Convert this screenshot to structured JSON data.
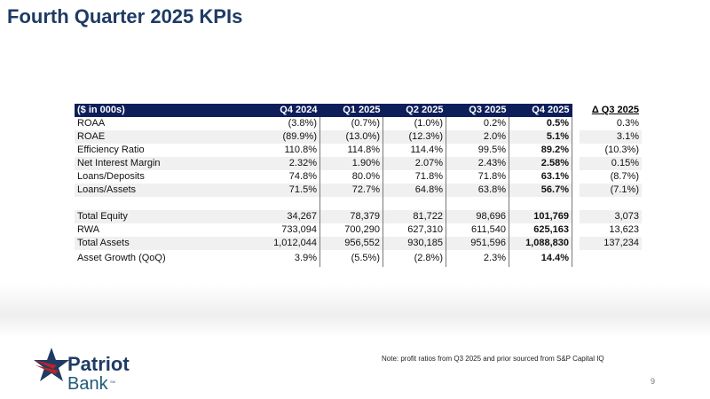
{
  "title": "Fourth Quarter 2025 KPIs",
  "table": {
    "headers": [
      "($ in 000s)",
      "Q4 2024",
      "Q1 2025",
      "Q2 2025",
      "Q3 2025",
      "Q4 2025",
      "Δ Q3 2025"
    ],
    "rows": [
      [
        "ROAA",
        "(3.8%)",
        "(0.7%)",
        "(1.0%)",
        "0.2%",
        "0.5%",
        "0.3%"
      ],
      [
        "ROAE",
        "(89.9%)",
        "(13.0%)",
        "(12.3%)",
        "2.0%",
        "5.1%",
        "3.1%"
      ],
      [
        "Efficiency Ratio",
        "110.8%",
        "114.8%",
        "114.4%",
        "99.5%",
        "89.2%",
        "(10.3%)"
      ],
      [
        "Net Interest Margin",
        "2.32%",
        "1.90%",
        "2.07%",
        "2.43%",
        "2.58%",
        "0.15%"
      ],
      [
        "Loans/Deposits",
        "74.8%",
        "80.0%",
        "71.8%",
        "71.8%",
        "63.1%",
        "(8.7%)"
      ],
      [
        "Loans/Assets",
        "71.5%",
        "72.7%",
        "64.8%",
        "63.8%",
        "56.7%",
        "(7.1%)"
      ],
      [
        "Total Equity",
        "34,267",
        "78,379",
        "81,722",
        "98,696",
        "101,769",
        "3,073"
      ],
      [
        "RWA",
        "733,094",
        "700,290",
        "627,310",
        "611,540",
        "625,163",
        "13,623"
      ],
      [
        "Total Assets",
        "1,012,044",
        "956,552",
        "930,185",
        "951,596",
        "1,088,830",
        "137,234"
      ],
      [
        "Asset Growth (QoQ)",
        "3.9%",
        "(5.5%)",
        "(2.8%)",
        "2.3%",
        "14.4%",
        ""
      ]
    ]
  },
  "note": "Note: profit ratios from Q3 2025 and prior sourced from S&P Capital IQ",
  "page_number": "9",
  "logo": {
    "line1": "Patriot",
    "line2": "Bank",
    "mark": "SM"
  },
  "colors": {
    "title": "#1f3b64",
    "header": "#0d1e5a",
    "logo_red": "#b5252b",
    "logo_blue": "#1f3b64"
  }
}
